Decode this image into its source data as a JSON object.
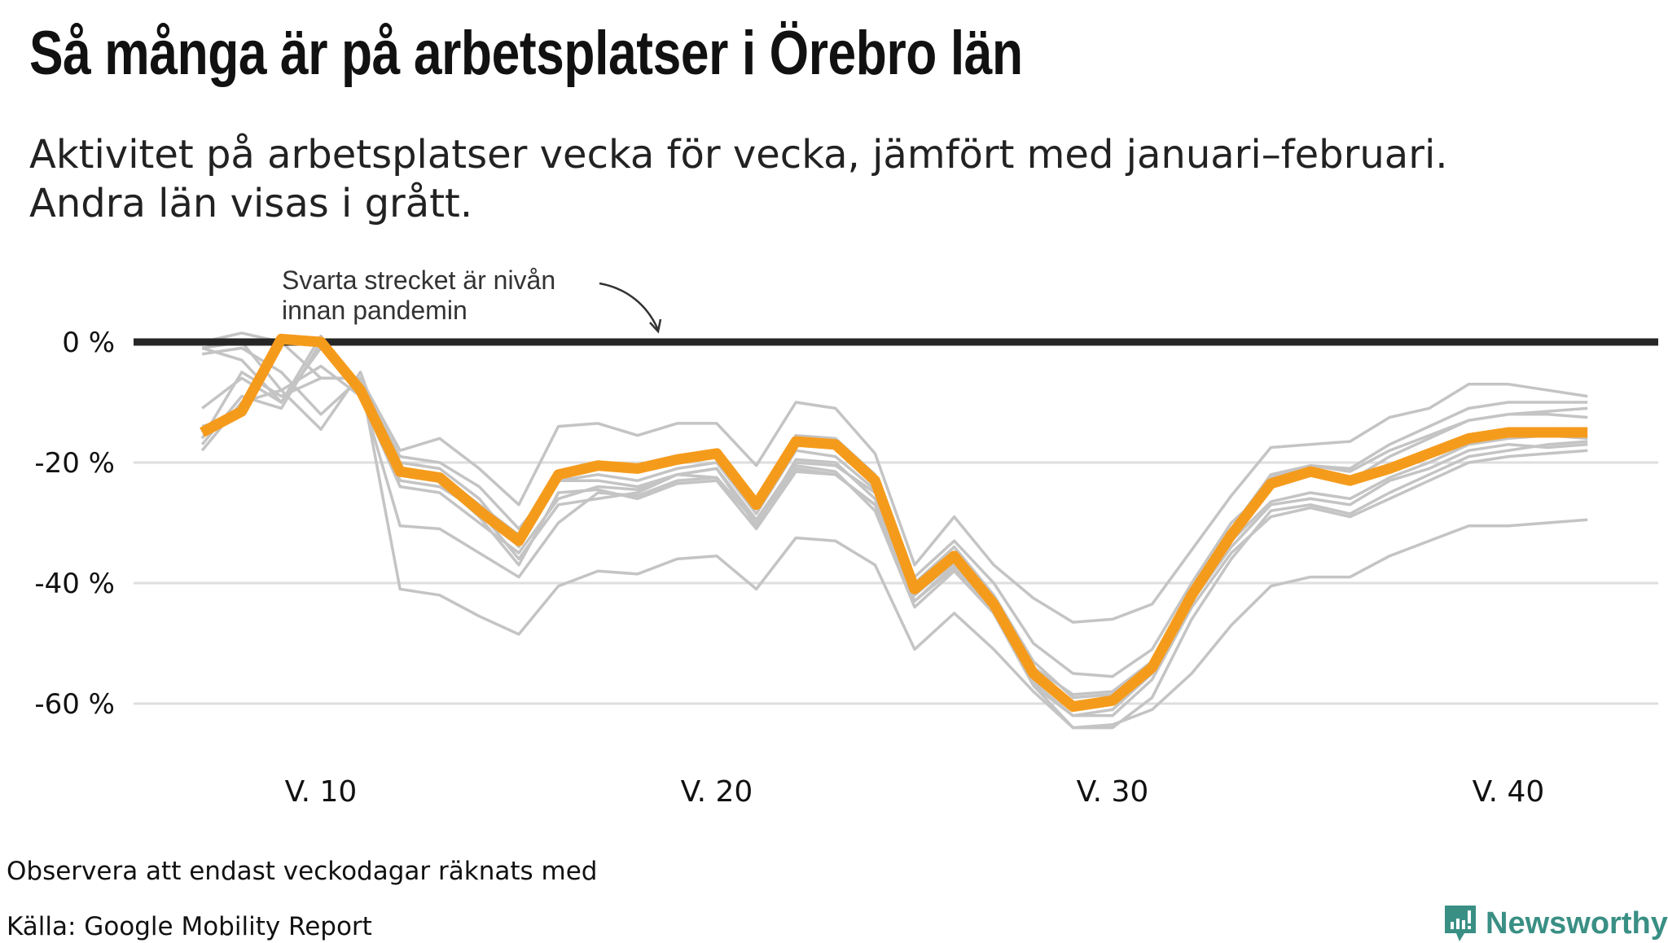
{
  "title": "Så många är på arbetsplatser i Örebro län",
  "subtitle_line1": "Aktivitet på arbetsplatser vecka för vecka, jämfört med januari–februari.",
  "subtitle_line2": "Andra län visas i grått.",
  "footer": {
    "note": "Observera att endast veckodagar räknats med",
    "source": "Källa: Google Mobility Report",
    "logo_text": "Newsworthy",
    "logo_color": "#3a8f84"
  },
  "chart_data": {
    "type": "line",
    "xlabel": "",
    "ylabel": "",
    "x": [
      7,
      8,
      9,
      10,
      11,
      12,
      13,
      14,
      15,
      16,
      17,
      18,
      19,
      20,
      21,
      22,
      23,
      24,
      25,
      26,
      27,
      28,
      29,
      30,
      31,
      32,
      33,
      34,
      35,
      36,
      37,
      38,
      39,
      40,
      41,
      42
    ],
    "ylim": [
      -70,
      5
    ],
    "xlim": [
      4.5,
      43.5
    ],
    "yticks": [
      0,
      -20,
      -40,
      -60
    ],
    "ytick_labels": [
      "0 %",
      "-20 %",
      "-40 %",
      "-60 %"
    ],
    "xticks": [
      10,
      20,
      30,
      40
    ],
    "xtick_labels": [
      "V. 10",
      "V. 20",
      "V. 30",
      "V. 40"
    ],
    "grid": true,
    "reference_line": 0,
    "annotation": {
      "line1": "Svarta strecket är nivån",
      "line2": "innan pandemin"
    },
    "highlight": {
      "name": "Örebro län",
      "color": "#f59b1c",
      "values": [
        -15,
        -11.5,
        0.5,
        0,
        -8,
        -21.5,
        -22.5,
        -28,
        -33,
        -22,
        -20.5,
        -21,
        -19.5,
        -18.5,
        -27,
        -16.5,
        -17,
        -23,
        -41,
        -35.5,
        -43.5,
        -55,
        -60.5,
        -59.5,
        -54,
        -42,
        -32,
        -23.5,
        -21.5,
        -23,
        -21,
        -18.5,
        -16,
        -15,
        -15,
        -15
      ]
    },
    "other_color": "#c4c4c4",
    "others": [
      {
        "values": [
          -16,
          -5,
          -9,
          -6,
          -6,
          -41,
          -42,
          -45.5,
          -48.5,
          -40.5,
          -38,
          -38.5,
          -36,
          -35.5,
          -41,
          -32.5,
          -33,
          -37,
          -51,
          -45,
          -51,
          -58,
          -64,
          -63.5,
          -61,
          -55,
          -47,
          -40.5,
          -39,
          -39,
          -35.5,
          -33,
          -30.5,
          -30.5,
          -30,
          -29.5
        ]
      },
      {
        "values": [
          0,
          1.5,
          0,
          -6,
          -6,
          -18,
          -16,
          -21,
          -27,
          -14,
          -13.5,
          -15.5,
          -13.5,
          -13.5,
          -20.5,
          -10,
          -11,
          -18.5,
          -37,
          -29,
          -37,
          -42.5,
          -46.5,
          -46,
          -43.5,
          -34.5,
          -25.5,
          -17.5,
          -17,
          -16.5,
          -12.5,
          -11,
          -7,
          -7,
          -8,
          -9
        ]
      },
      {
        "values": [
          -11,
          -6,
          -10,
          1,
          -8,
          -30.5,
          -31,
          -35,
          -39,
          -30,
          -25,
          -25.5,
          -23,
          -22.5,
          -30,
          -20.5,
          -21.5,
          -28,
          -44,
          -38,
          -45,
          -57,
          -62,
          -62,
          -56,
          -44,
          -35,
          -29,
          -27.5,
          -29,
          -26,
          -23,
          -20,
          -19,
          -18.5,
          -18
        ]
      },
      {
        "values": [
          -17,
          -9,
          -11,
          0,
          -9,
          -24,
          -25,
          -30,
          -35,
          -26,
          -24,
          -24.5,
          -22,
          -21,
          -30.5,
          -19.5,
          -20,
          -26,
          -43,
          -37,
          -45,
          -56.5,
          -62,
          -61,
          -55,
          -43,
          -33,
          -26.5,
          -25,
          -26,
          -22.5,
          -20,
          -17,
          -16,
          -15.5,
          -16
        ]
      },
      {
        "values": [
          -1,
          -3,
          -10,
          -1,
          -7,
          -19,
          -20,
          -24,
          -31,
          -23,
          -22,
          -23,
          -21,
          -20,
          -28.5,
          -18,
          -19,
          -24.5,
          -42,
          -36,
          -44,
          -54,
          -58.5,
          -58,
          -53,
          -41,
          -31,
          -22,
          -20.5,
          -21.5,
          -18,
          -15.5,
          -13,
          -12,
          -11.5,
          -11
        ]
      },
      {
        "values": [
          -18,
          -10,
          -8,
          -14.5,
          -5,
          -23,
          -24,
          -28,
          -36,
          -27,
          -26,
          -25,
          -22,
          -22.5,
          -30,
          -21,
          -22,
          -27,
          -42,
          -36.5,
          -44,
          -56,
          -61,
          -60,
          -54,
          -43,
          -34,
          -27,
          -26,
          -27,
          -23,
          -21,
          -18,
          -17,
          -17.5,
          -17
        ]
      },
      {
        "values": [
          -2,
          -1,
          -5,
          -12,
          -6,
          -20,
          -21,
          -26,
          -34,
          -23,
          -23,
          -24,
          -22,
          -21,
          -29.5,
          -20,
          -20.5,
          -25,
          -39,
          -33,
          -40,
          -50,
          -55,
          -55.5,
          -51,
          -40,
          -30,
          -24,
          -22,
          -23,
          -19,
          -16,
          -13,
          -12,
          -12,
          -12.5
        ]
      },
      {
        "values": [
          -1,
          0,
          -8,
          -4,
          -9,
          -22,
          -23,
          -29,
          -37,
          -25,
          -24.5,
          -26,
          -23.5,
          -23,
          -31,
          -21.5,
          -22,
          -27,
          -43,
          -37.5,
          -45,
          -57,
          -64,
          -64,
          -59,
          -46,
          -36,
          -28,
          -27,
          -28.5,
          -25,
          -22,
          -19,
          -18,
          -17,
          -16.5
        ]
      },
      {
        "values": [
          -14,
          -12,
          0,
          0,
          -8,
          -21,
          -22,
          -27,
          -32,
          -22,
          -20,
          -21,
          -19,
          -18,
          -26,
          -15.5,
          -16,
          -22,
          -40,
          -34,
          -42,
          -53,
          -59,
          -58.5,
          -53,
          -41.5,
          -31,
          -22.5,
          -20.5,
          -21,
          -17,
          -14,
          -11,
          -10,
          -10,
          -10
        ]
      }
    ]
  }
}
